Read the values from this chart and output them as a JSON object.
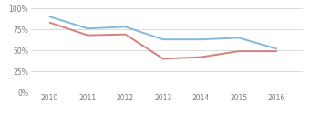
{
  "years": [
    2010,
    2011,
    2012,
    2013,
    2014,
    2015,
    2016
  ],
  "school_values": [
    0.9,
    0.76,
    0.78,
    0.63,
    0.63,
    0.65,
    0.52
  ],
  "state_values": [
    0.83,
    0.68,
    0.69,
    0.4,
    0.42,
    0.49,
    0.49
  ],
  "school_color": "#85b8d9",
  "state_color": "#d4827a",
  "ylim": [
    0.0,
    1.05
  ],
  "yticks": [
    0.0,
    0.25,
    0.5,
    0.75,
    1.0
  ],
  "ytick_labels": [
    "0%",
    "25%",
    "50%",
    "75%",
    "100%"
  ],
  "background_color": "#ffffff",
  "grid_color": "#cccccc",
  "legend_fontsize": 5.2,
  "tick_fontsize": 5.5,
  "line_width": 1.4
}
